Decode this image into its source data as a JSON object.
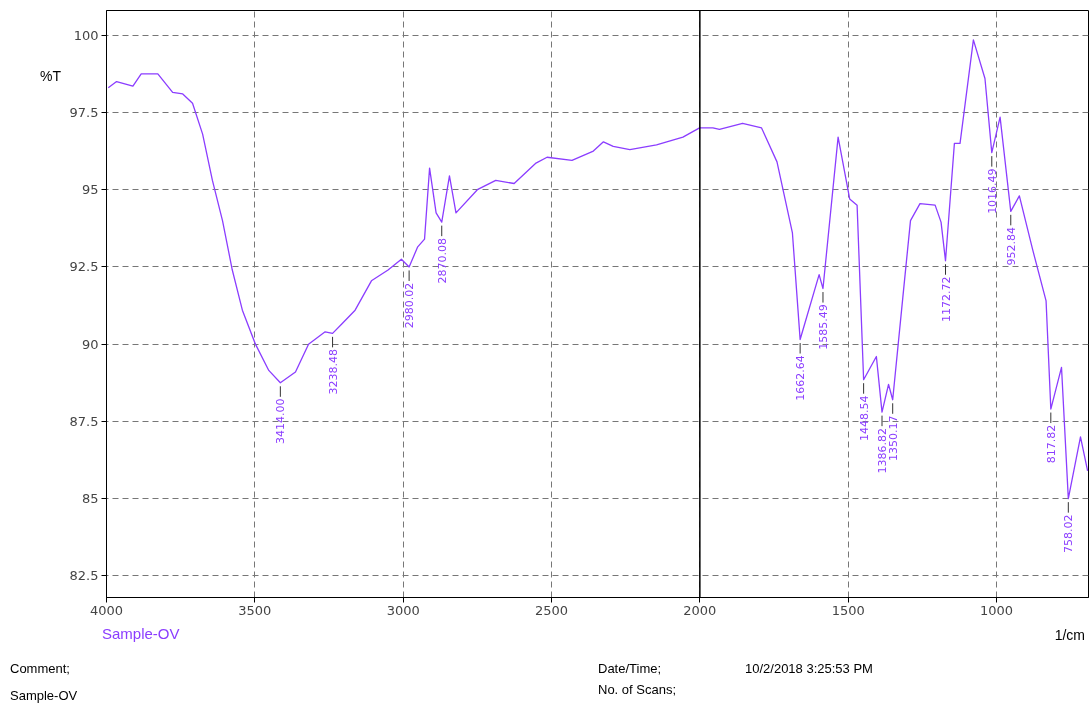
{
  "chart_data": {
    "type": "line",
    "xlabel": "1/cm",
    "ylabel": "%T",
    "xlim": [
      4000,
      690
    ],
    "ylim": [
      81.8,
      100.8
    ],
    "xticks": [
      4000,
      3500,
      3000,
      2500,
      2000,
      1500,
      1000
    ],
    "yticks": [
      82.5,
      85,
      87.5,
      90,
      92.5,
      95,
      97.5,
      100
    ],
    "grid": true,
    "line_style": "solid",
    "marker": "none",
    "ref_lines": [
      {
        "axis": "x",
        "value": 2000,
        "label": null,
        "color": "#000000",
        "line_style": "solid"
      }
    ],
    "series": [
      {
        "name": "Sample-OV",
        "color": "#8b3dff",
        "x": [
          3994,
          3966,
          3911,
          3883,
          3827,
          3777,
          3743,
          3710,
          3676,
          3643,
          3609,
          3576,
          3542,
          3498,
          3453,
          3414,
          3363,
          3319,
          3263,
          3238,
          3207,
          3162,
          3107,
          3051,
          3006,
          2980,
          2951,
          2928,
          2911,
          2889,
          2870,
          2844,
          2822,
          2750,
          2688,
          2626,
          2554,
          2515,
          2431,
          2359,
          2325,
          2292,
          2236,
          2146,
          2057,
          2001,
          1956,
          1934,
          1856,
          1792,
          1740,
          1688,
          1662,
          1598,
          1585,
          1534,
          1495,
          1470,
          1448,
          1405,
          1386,
          1364,
          1350,
          1316,
          1290,
          1258,
          1207,
          1187,
          1172,
          1142,
          1123,
          1078,
          1039,
          1016,
          988,
          952,
          923,
          878,
          833,
          817,
          781,
          758,
          717,
          693
        ],
        "values": [
          98.3,
          98.5,
          98.35,
          98.75,
          98.75,
          98.15,
          98.1,
          97.8,
          96.8,
          95.3,
          94.0,
          92.4,
          91.1,
          90.0,
          89.15,
          88.75,
          89.1,
          90.0,
          90.4,
          90.35,
          90.65,
          91.1,
          92.05,
          92.4,
          92.75,
          92.5,
          93.15,
          93.4,
          95.7,
          94.25,
          93.95,
          95.45,
          94.25,
          95.0,
          95.3,
          95.2,
          95.85,
          96.05,
          95.95,
          96.25,
          96.55,
          96.4,
          96.3,
          96.45,
          96.7,
          97.0,
          97.0,
          96.95,
          97.15,
          97.0,
          95.9,
          93.6,
          90.15,
          92.25,
          91.8,
          96.7,
          94.7,
          94.5,
          88.85,
          89.6,
          87.8,
          88.7,
          88.2,
          91.5,
          94.0,
          94.55,
          94.5,
          93.95,
          92.7,
          96.5,
          96.5,
          99.85,
          98.6,
          96.2,
          97.35,
          94.3,
          94.8,
          93.05,
          91.4,
          87.9,
          89.25,
          85.0,
          87.0,
          85.9
        ]
      }
    ],
    "annotations": [
      {
        "text": "3414.00",
        "x": 3414,
        "y": 88.75
      },
      {
        "text": "3238.48",
        "x": 3238,
        "y": 90.35
      },
      {
        "text": "2980.02",
        "x": 2980,
        "y": 92.5
      },
      {
        "text": "2870.08",
        "x": 2870,
        "y": 93.95
      },
      {
        "text": "1662.64",
        "x": 1662,
        "y": 90.15
      },
      {
        "text": "1585.49",
        "x": 1585,
        "y": 91.8
      },
      {
        "text": "1448.54",
        "x": 1448,
        "y": 88.85
      },
      {
        "text": "1386.82",
        "x": 1386,
        "y": 87.8
      },
      {
        "text": "1350.17",
        "x": 1350,
        "y": 88.2
      },
      {
        "text": "1172.72",
        "x": 1172,
        "y": 92.7
      },
      {
        "text": "1016.49",
        "x": 1016,
        "y": 96.2
      },
      {
        "text": "952.84",
        "x": 952,
        "y": 94.3
      },
      {
        "text": "817.82",
        "x": 817,
        "y": 87.9
      },
      {
        "text": "758.02",
        "x": 758,
        "y": 85.0
      },
      "Comment;",
      "Sample-OV",
      "Date/Time;",
      "10/2/2018 3:25:53 PM",
      "No. of Scans;"
    ]
  }
}
